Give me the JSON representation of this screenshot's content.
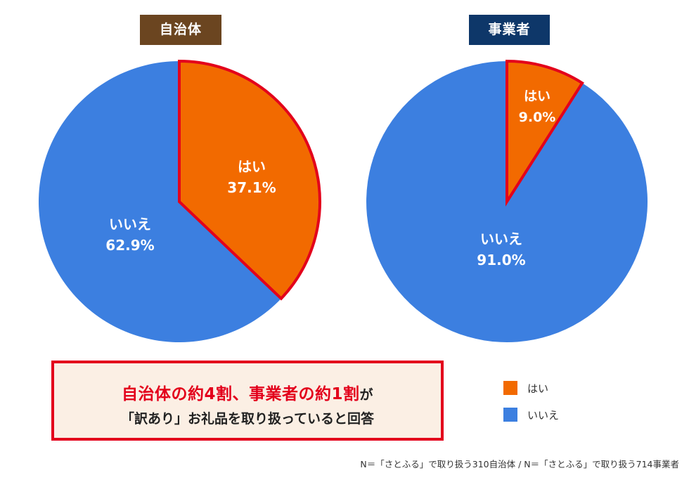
{
  "colors": {
    "yes": "#f26a00",
    "no": "#3c7fe0",
    "highlight_border": "#e3001b",
    "title_left_bg": "#6b4520",
    "title_right_bg": "#0e3769"
  },
  "chart_data": [
    {
      "type": "pie",
      "title": "自治体",
      "slices": [
        {
          "label": "はい",
          "value": 37.1,
          "value_text": "37.1%",
          "color": "#f26a00",
          "highlighted": true
        },
        {
          "label": "いいえ",
          "value": 62.9,
          "value_text": "62.9%",
          "color": "#3c7fe0",
          "highlighted": false
        }
      ]
    },
    {
      "type": "pie",
      "title": "事業者",
      "slices": [
        {
          "label": "はい",
          "value": 9.0,
          "value_text": "9.0%",
          "color": "#f26a00",
          "highlighted": true
        },
        {
          "label": "いいえ",
          "value": 91.0,
          "value_text": "91.0%",
          "color": "#3c7fe0",
          "highlighted": false
        }
      ]
    }
  ],
  "legend": [
    {
      "label": "はい",
      "color": "#f26a00"
    },
    {
      "label": "いいえ",
      "color": "#3c7fe0"
    }
  ],
  "callout": {
    "line1": "自治体の約4割、事業者の約1割",
    "line1_suffix": "が",
    "line2": "「訳あり」お礼品を取り扱っていると回答"
  },
  "footnote": "N＝「さとふる」で取り扱う310自治体 / N＝「さとふる」で取り扱う714事業者"
}
